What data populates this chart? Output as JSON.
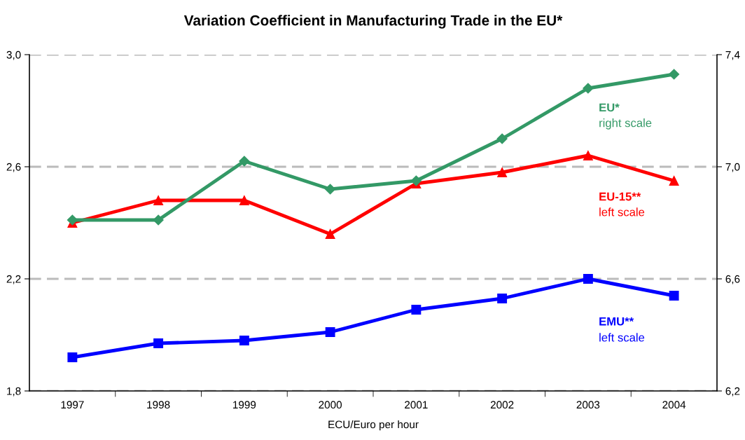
{
  "chart_data": {
    "type": "line",
    "title": "Variation Coefficient in Manufacturing Trade in the EU*",
    "xlabel": "ECU/Euro per hour",
    "categories": [
      "1997",
      "1998",
      "1999",
      "2000",
      "2001",
      "2002",
      "2003",
      "2004"
    ],
    "series": [
      {
        "name": "EU*",
        "color": "#339966",
        "axis": "y2",
        "marker": "diamond",
        "values": [
          6.81,
          6.81,
          7.02,
          6.92,
          6.95,
          7.1,
          7.28,
          7.33
        ]
      },
      {
        "name": "EU-15**",
        "color": "#ff0000",
        "marker": "triangle",
        "values": [
          2.4,
          2.48,
          2.48,
          2.36,
          2.54,
          2.58,
          2.64,
          2.55
        ]
      },
      {
        "name": "EMU**",
        "color": "#0000ff",
        "marker": "square",
        "values": [
          1.92,
          1.97,
          1.98,
          2.01,
          2.09,
          2.13,
          2.2,
          2.14
        ]
      }
    ],
    "annotations": [
      "right scale",
      "left scale",
      "left scale"
    ],
    "ylim": [
      1.8,
      3.0
    ],
    "yticks": [
      {
        "value": 1.8,
        "label": "1,8"
      },
      {
        "value": 2.2,
        "label": "2,2"
      },
      {
        "value": 2.6,
        "label": "2,6"
      },
      {
        "value": 3.0,
        "label": "3,0"
      }
    ],
    "y2lim": [
      6.2,
      7.4
    ],
    "y2ticks": [
      {
        "value": 6.2,
        "label": "6,2"
      },
      {
        "value": 6.6,
        "label": "6,6"
      },
      {
        "value": 7.0,
        "label": "7,0"
      },
      {
        "value": 7.4,
        "label": "7,4"
      }
    ],
    "grid": "y",
    "line_style": "solid",
    "legend": false
  }
}
